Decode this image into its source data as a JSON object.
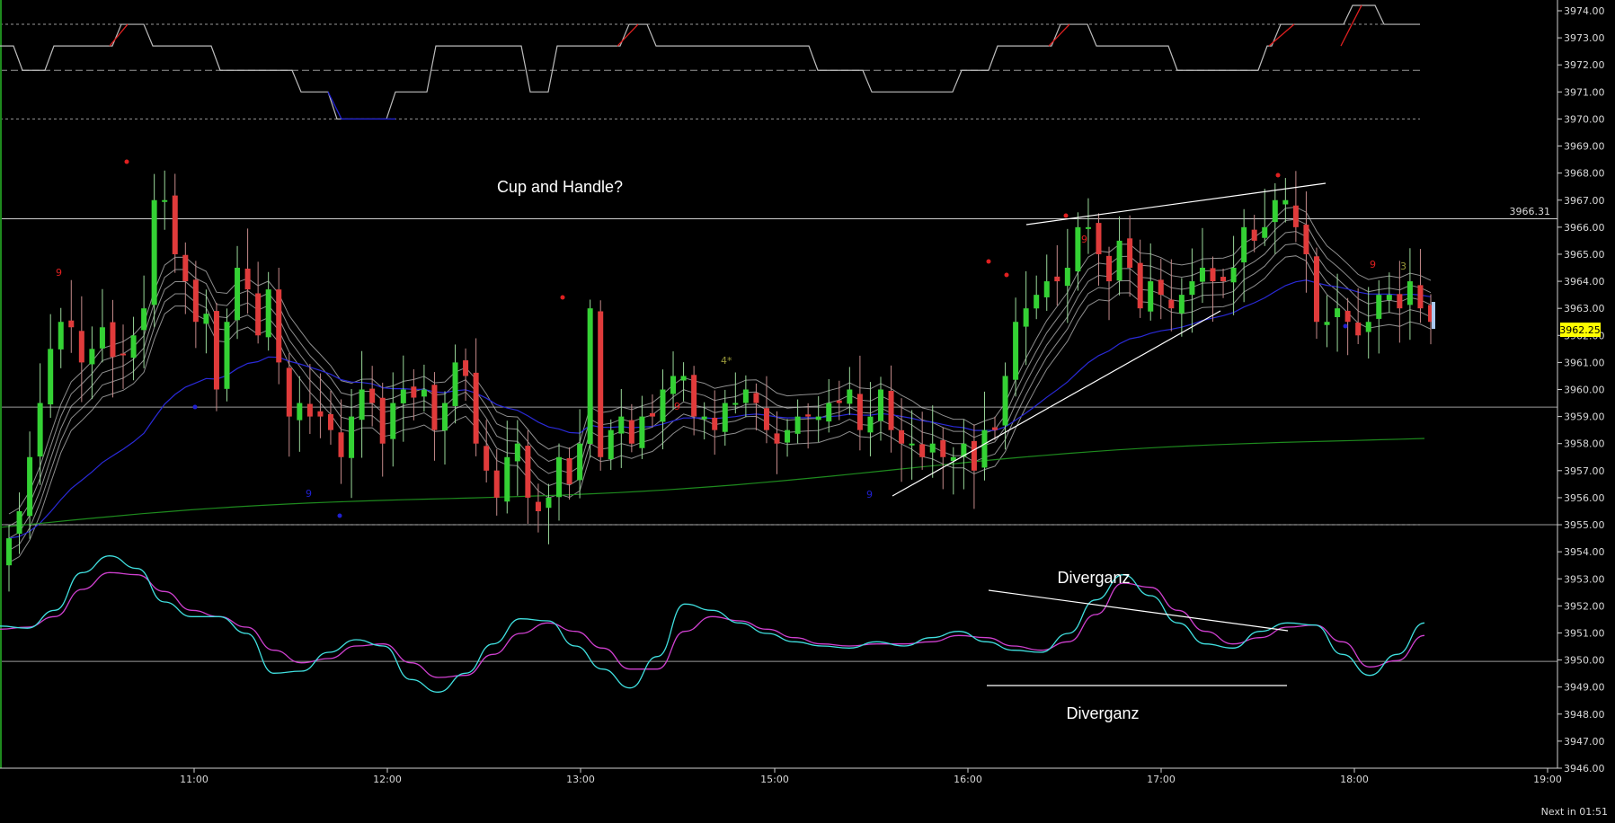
{
  "chart_data": {
    "type": "candlestick",
    "background": "#000000",
    "colors": {
      "up": "#34d134",
      "down": "#e03b3b",
      "ema_band": "#bdbdbd",
      "ma_blue": "#2a2ad8",
      "ma_green": "#1e8a1e",
      "osc_fast": "#40e0e0",
      "osc_slow": "#d040d0",
      "hline": "#cfcfcf",
      "price_tag_bg": "#ffff00",
      "signal_red": "#e02020",
      "signal_blue": "#2020d0",
      "seq_olive": "#9a9a3a"
    },
    "y_axis": {
      "min": 3946.0,
      "max": 3974.0,
      "ticks": [
        "3974.00",
        "3973.00",
        "3972.00",
        "3971.00",
        "3970.00",
        "3969.00",
        "3968.00",
        "3967.00",
        "3966.00",
        "3965.00",
        "3964.00",
        "3963.00",
        "3962.00",
        "3961.00",
        "3960.00",
        "3959.00",
        "3958.00",
        "3957.00",
        "3956.00",
        "3955.00",
        "3954.00",
        "3953.00",
        "3952.00",
        "3951.00",
        "3950.00",
        "3949.00",
        "3948.00",
        "3947.00",
        "3946.00"
      ]
    },
    "x_axis": {
      "ticks": [
        "11:00",
        "12:00",
        "13:00",
        "15:00",
        "16:00",
        "17:00",
        "18:00",
        "19:00"
      ]
    },
    "last_price": "3962.25",
    "horizontal_level_label": "3966.31",
    "levels": [
      3966.31,
      3959.35,
      3955.0,
      3949.95
    ],
    "dashed_levels": [
      3973.5,
      3970.0,
      3955.0
    ],
    "close": [
      3954.5,
      3955.5,
      3957.5,
      3959.5,
      3961.5,
      3962.5,
      3962.3,
      3961.0,
      3961.5,
      3962.3,
      3961.2,
      3961.3,
      3962.0,
      3963.0,
      3967.0,
      3967.0,
      3965.0,
      3964.0,
      3962.5,
      3962.8,
      3960.0,
      3962.5,
      3964.5,
      3963.7,
      3962.0,
      3963.7,
      3961.0,
      3959.0,
      3959.5,
      3959.0,
      3959.0,
      3958.5,
      3957.5,
      3959.0,
      3960.0,
      3959.5,
      3958.0,
      3959.5,
      3960.0,
      3959.7,
      3960.0,
      3958.5,
      3959.5,
      3961.0,
      3960.5,
      3958.0,
      3957.0,
      3956.0,
      3957.5,
      3958.0,
      3956.0,
      3955.5,
      3956.0,
      3957.5,
      3956.5,
      3958.0,
      3963.0,
      3957.5,
      3958.5,
      3959.0,
      3958.0,
      3959.0,
      3959.0,
      3960.0,
      3960.5,
      3960.5,
      3959.0,
      3959.0,
      3958.5,
      3959.5,
      3959.5,
      3960.0,
      3959.5,
      3958.5,
      3958.0,
      3958.5,
      3959.0,
      3959.0,
      3959.0,
      3959.5,
      3959.5,
      3960.0,
      3958.5,
      3959.0,
      3960.0,
      3958.5,
      3958.0,
      3958.0,
      3957.5,
      3958.0,
      3957.5,
      3957.5,
      3958.0,
      3957.0,
      3958.5,
      3958.5,
      3960.5,
      3962.5,
      3963.0,
      3963.5,
      3964.0,
      3964.0,
      3964.5,
      3966.0,
      3966.0,
      3965.0,
      3964.0,
      3965.5,
      3964.5,
      3963.0,
      3964.0,
      3963.5,
      3963.0,
      3963.5,
      3964.0,
      3964.5,
      3964.0,
      3964.0,
      3964.5,
      3966.0,
      3965.5,
      3966.0,
      3967.0,
      3967.0,
      3966.0,
      3965.0,
      3962.5,
      3962.5,
      3963.0,
      3962.5,
      3962.0,
      3962.5,
      3963.5,
      3963.5,
      3963.0,
      3964.0,
      3963.0,
      3962.5
    ],
    "oscillator_fast": [
      0.85,
      0.75,
      1.6,
      3.4,
      4.2,
      3.6,
      2.0,
      1.3,
      1.3,
      0.5,
      -1.4,
      -1.3,
      -0.4,
      0.2,
      -0.1,
      -1.7,
      -2.3,
      -1.4,
      0.0,
      1.2,
      1.1,
      -0.1,
      -1.2,
      -2.1,
      -0.6,
      1.9,
      1.6,
      1.0,
      0.5,
      0.1,
      -0.1,
      -0.2,
      0.1,
      -0.1,
      0.3,
      0.6,
      0.1,
      -0.3,
      -0.4,
      0.5,
      2.1,
      3.3,
      2.3,
      1.0,
      0.0,
      -0.2,
      0.6,
      1.0,
      0.9,
      -0.5,
      -1.5,
      -0.5,
      1.0
    ],
    "oscillator_slow": [
      0.7,
      0.8,
      1.3,
      2.6,
      3.4,
      3.3,
      2.5,
      1.6,
      1.3,
      0.8,
      -0.3,
      -0.9,
      -0.7,
      -0.1,
      0.0,
      -0.9,
      -1.6,
      -1.5,
      -0.5,
      0.5,
      1.0,
      0.6,
      -0.2,
      -1.2,
      -1.2,
      0.6,
      1.3,
      1.1,
      0.7,
      0.3,
      0.0,
      -0.1,
      0.0,
      0.0,
      0.1,
      0.4,
      0.3,
      -0.1,
      -0.3,
      0.1,
      1.4,
      2.9,
      2.7,
      1.6,
      0.6,
      0.0,
      0.3,
      0.8,
      0.9,
      0.1,
      -1.1,
      -0.8,
      0.4
    ],
    "oscillator_scale": [
      -4.0,
      5.0
    ]
  },
  "annotations": {
    "cup_and_handle": "Cup and Handle?",
    "divergence_top": "Diverganz",
    "divergence_bottom": "Diverganz"
  },
  "markers": {
    "red_nine": "9",
    "blue_nine": "9",
    "four_star": "4*",
    "three": "3"
  },
  "status_bar": {
    "next_bar": "Next in 01:51"
  }
}
